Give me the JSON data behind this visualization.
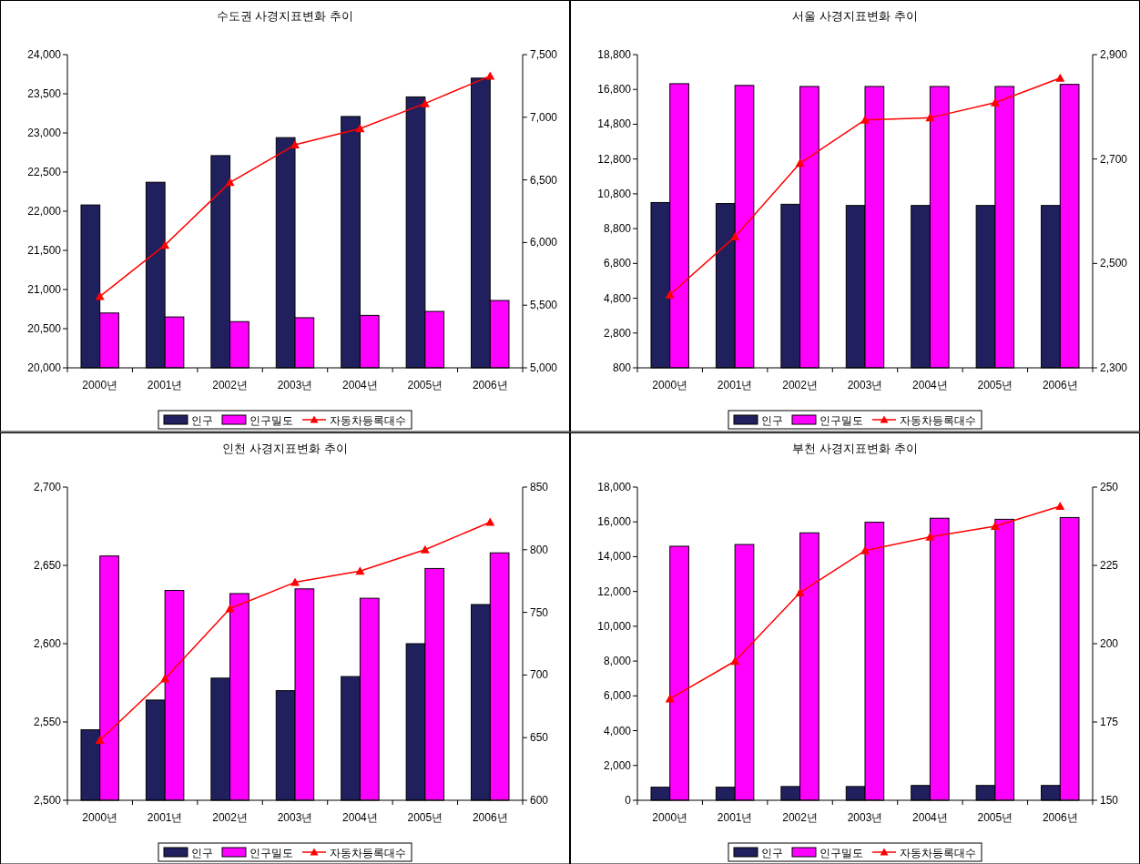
{
  "chart_data": [
    {
      "type": "bar",
      "title": "수도권 사경지표변화 추이",
      "categories": [
        "2000년",
        "2001년",
        "2002년",
        "2003년",
        "2004년",
        "2005년",
        "2006년"
      ],
      "legend": "bottom",
      "marker": "triangle",
      "ylim": [
        20000,
        24000
      ],
      "yticks": [
        {
          "value": 20000,
          "label": "20,000"
        },
        {
          "value": 20500,
          "label": "20,500"
        },
        {
          "value": 21000,
          "label": "21,000"
        },
        {
          "value": 21500,
          "label": "21,500"
        },
        {
          "value": 22000,
          "label": "22,000"
        },
        {
          "value": 22500,
          "label": "22,500"
        },
        {
          "value": 23000,
          "label": "23,000"
        },
        {
          "value": 23500,
          "label": "23,500"
        },
        {
          "value": 24000,
          "label": "24,000"
        }
      ],
      "y2lim": [
        5000,
        7500
      ],
      "y2ticks": [
        {
          "value": 5000,
          "label": "5,000"
        },
        {
          "value": 5500,
          "label": "5,500"
        },
        {
          "value": 6000,
          "label": "6,000"
        },
        {
          "value": 6500,
          "label": "6,500"
        },
        {
          "value": 7000,
          "label": "7,000"
        },
        {
          "value": 7500,
          "label": "7,500"
        }
      ],
      "series": [
        {
          "name": "인구",
          "color": "#20205e",
          "values": [
            22080,
            22370,
            22710,
            22940,
            23210,
            23460,
            23700
          ]
        },
        {
          "name": "인구밀도",
          "color": "#ff00ff",
          "values": [
            20700,
            20650,
            20590,
            20640,
            20670,
            20720,
            20860
          ]
        },
        {
          "name": "자동차등록대수",
          "type": "line",
          "axis": "y2",
          "color": "#ff0000",
          "values": [
            5570,
            5980,
            6480,
            6780,
            6910,
            7110,
            7330
          ]
        }
      ]
    },
    {
      "type": "bar",
      "title": "서울 사경지표변화 추이",
      "categories": [
        "2000년",
        "2001년",
        "2002년",
        "2003년",
        "2004년",
        "2005년",
        "2006년"
      ],
      "legend": "bottom",
      "marker": "triangle",
      "ylim": [
        800,
        18800
      ],
      "yticks": [
        800,
        {
          "value": 2800,
          "label": "2,800"
        },
        {
          "value": 4800,
          "label": "4,800"
        },
        {
          "value": 6800,
          "label": "6,800"
        },
        {
          "value": 8800,
          "label": "8,800"
        },
        {
          "value": 10800,
          "label": "10,800"
        },
        {
          "value": 12800,
          "label": "12,800"
        },
        {
          "value": 14800,
          "label": "14,800"
        },
        {
          "value": 16800,
          "label": "16,800"
        },
        {
          "value": 18800,
          "label": "18,800"
        }
      ],
      "y2lim": [
        2300,
        2900
      ],
      "y2ticks": [
        {
          "value": 2300,
          "label": "2,300"
        },
        {
          "value": 2500,
          "label": "2,500"
        },
        {
          "value": 2700,
          "label": "2,700"
        },
        {
          "value": 2900,
          "label": "2,900"
        }
      ],
      "series": [
        {
          "name": "인구",
          "color": "#20205e",
          "values": [
            10300,
            10240,
            10200,
            10130,
            10130,
            10130,
            10130
          ]
        },
        {
          "name": "인구밀도",
          "color": "#ff00ff",
          "values": [
            17130,
            17030,
            16970,
            16970,
            16970,
            16970,
            17090
          ]
        },
        {
          "name": "자동차등록대수",
          "type": "line",
          "axis": "y2",
          "color": "#ff0000",
          "values": [
            2440,
            2551,
            2692,
            2775,
            2779,
            2808,
            2855
          ]
        }
      ]
    },
    {
      "type": "bar",
      "title": "인천 사경지표변화 추이",
      "categories": [
        "2000년",
        "2001년",
        "2002년",
        "2003년",
        "2004년",
        "2005년",
        "2006년"
      ],
      "legend": "bottom",
      "marker": "triangle",
      "ylim": [
        2500,
        2700
      ],
      "yticks": [
        {
          "value": 2500,
          "label": "2,500"
        },
        {
          "value": 2550,
          "label": "2,550"
        },
        {
          "value": 2600,
          "label": "2,600"
        },
        {
          "value": 2650,
          "label": "2,650"
        },
        {
          "value": 2700,
          "label": "2,700"
        }
      ],
      "y2lim": [
        600,
        850
      ],
      "y2ticks": [
        600,
        650,
        700,
        750,
        800,
        850
      ],
      "series": [
        {
          "name": "인구",
          "color": "#20205e",
          "values": [
            2545,
            2564,
            2578,
            2570,
            2579,
            2600,
            2625
          ]
        },
        {
          "name": "인구밀도",
          "color": "#ff00ff",
          "values": [
            2656,
            2634,
            2632,
            2635,
            2629,
            2648,
            2658
          ]
        },
        {
          "name": "자동차등록대수",
          "type": "line",
          "axis": "y2",
          "color": "#ff0000",
          "values": [
            648,
            697,
            753,
            774,
            783,
            800,
            822
          ]
        }
      ]
    },
    {
      "type": "bar",
      "title": "부천 사경지표변화 추이",
      "categories": [
        "2000년",
        "2001년",
        "2002년",
        "2003년",
        "2004년",
        "2005년",
        "2006년"
      ],
      "legend": "bottom",
      "marker": "triangle",
      "ylim": [
        0,
        18000
      ],
      "yticks": [
        0,
        {
          "value": 2000,
          "label": "2,000"
        },
        {
          "value": 4000,
          "label": "4,000"
        },
        {
          "value": 6000,
          "label": "6,000"
        },
        {
          "value": 8000,
          "label": "8,000"
        },
        {
          "value": 10000,
          "label": "10,000"
        },
        {
          "value": 12000,
          "label": "12,000"
        },
        {
          "value": 14000,
          "label": "14,000"
        },
        {
          "value": 16000,
          "label": "16,000"
        },
        {
          "value": 18000,
          "label": "18,000"
        }
      ],
      "y2lim": [
        150,
        250
      ],
      "y2ticks": [
        150,
        175,
        200,
        225,
        250
      ],
      "series": [
        {
          "name": "인구",
          "color": "#20205e",
          "values": [
            750,
            750,
            790,
            790,
            850,
            850,
            850
          ]
        },
        {
          "name": "인구밀도",
          "color": "#ff00ff",
          "values": [
            14600,
            14700,
            15370,
            15980,
            16210,
            16150,
            16250
          ]
        },
        {
          "name": "자동차등록대수",
          "type": "line",
          "axis": "y2",
          "color": "#ff0000",
          "values": [
            182.4,
            194.4,
            216.3,
            229.7,
            234.1,
            237.5,
            243.9
          ]
        }
      ]
    }
  ]
}
